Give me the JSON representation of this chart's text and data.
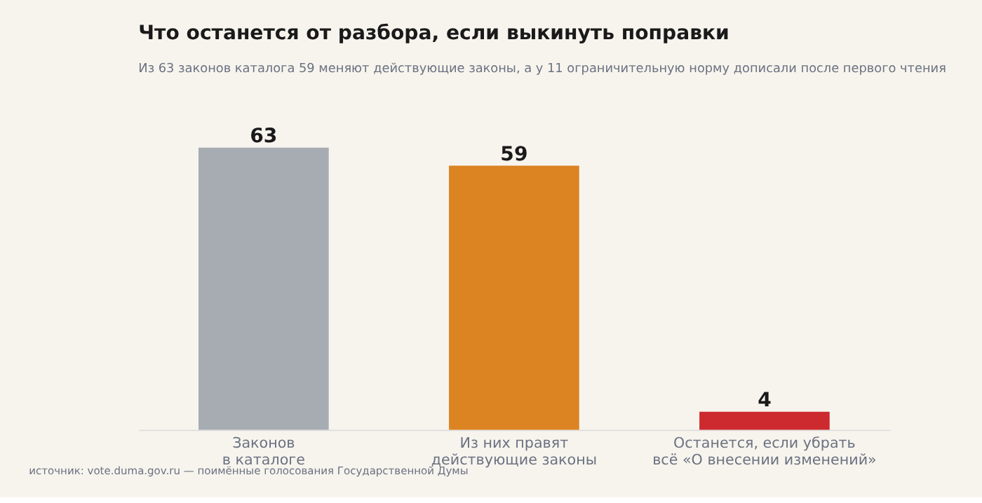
{
  "chart_data": {
    "type": "bar",
    "title": "Что останется от разбора, если выкинуть поправки",
    "subtitle": "Из 63 законов каталога 59 меняют действующие законы, а у 11 ограничительную норму дописали после первого чтения",
    "categories": [
      "Законов\nв каталоге",
      "Из них правят\nдействующие законы",
      "Останется, если убрать\nвсё «О внесении изменений»"
    ],
    "values": [
      63,
      59,
      4
    ],
    "colors": [
      "#a6acb2",
      "#dc8322",
      "#cc2a2e"
    ],
    "data_labels": true,
    "annotations": [
      "источник: vote.duma.gov.ru — поимённые голосования Государственной Думы"
    ]
  }
}
